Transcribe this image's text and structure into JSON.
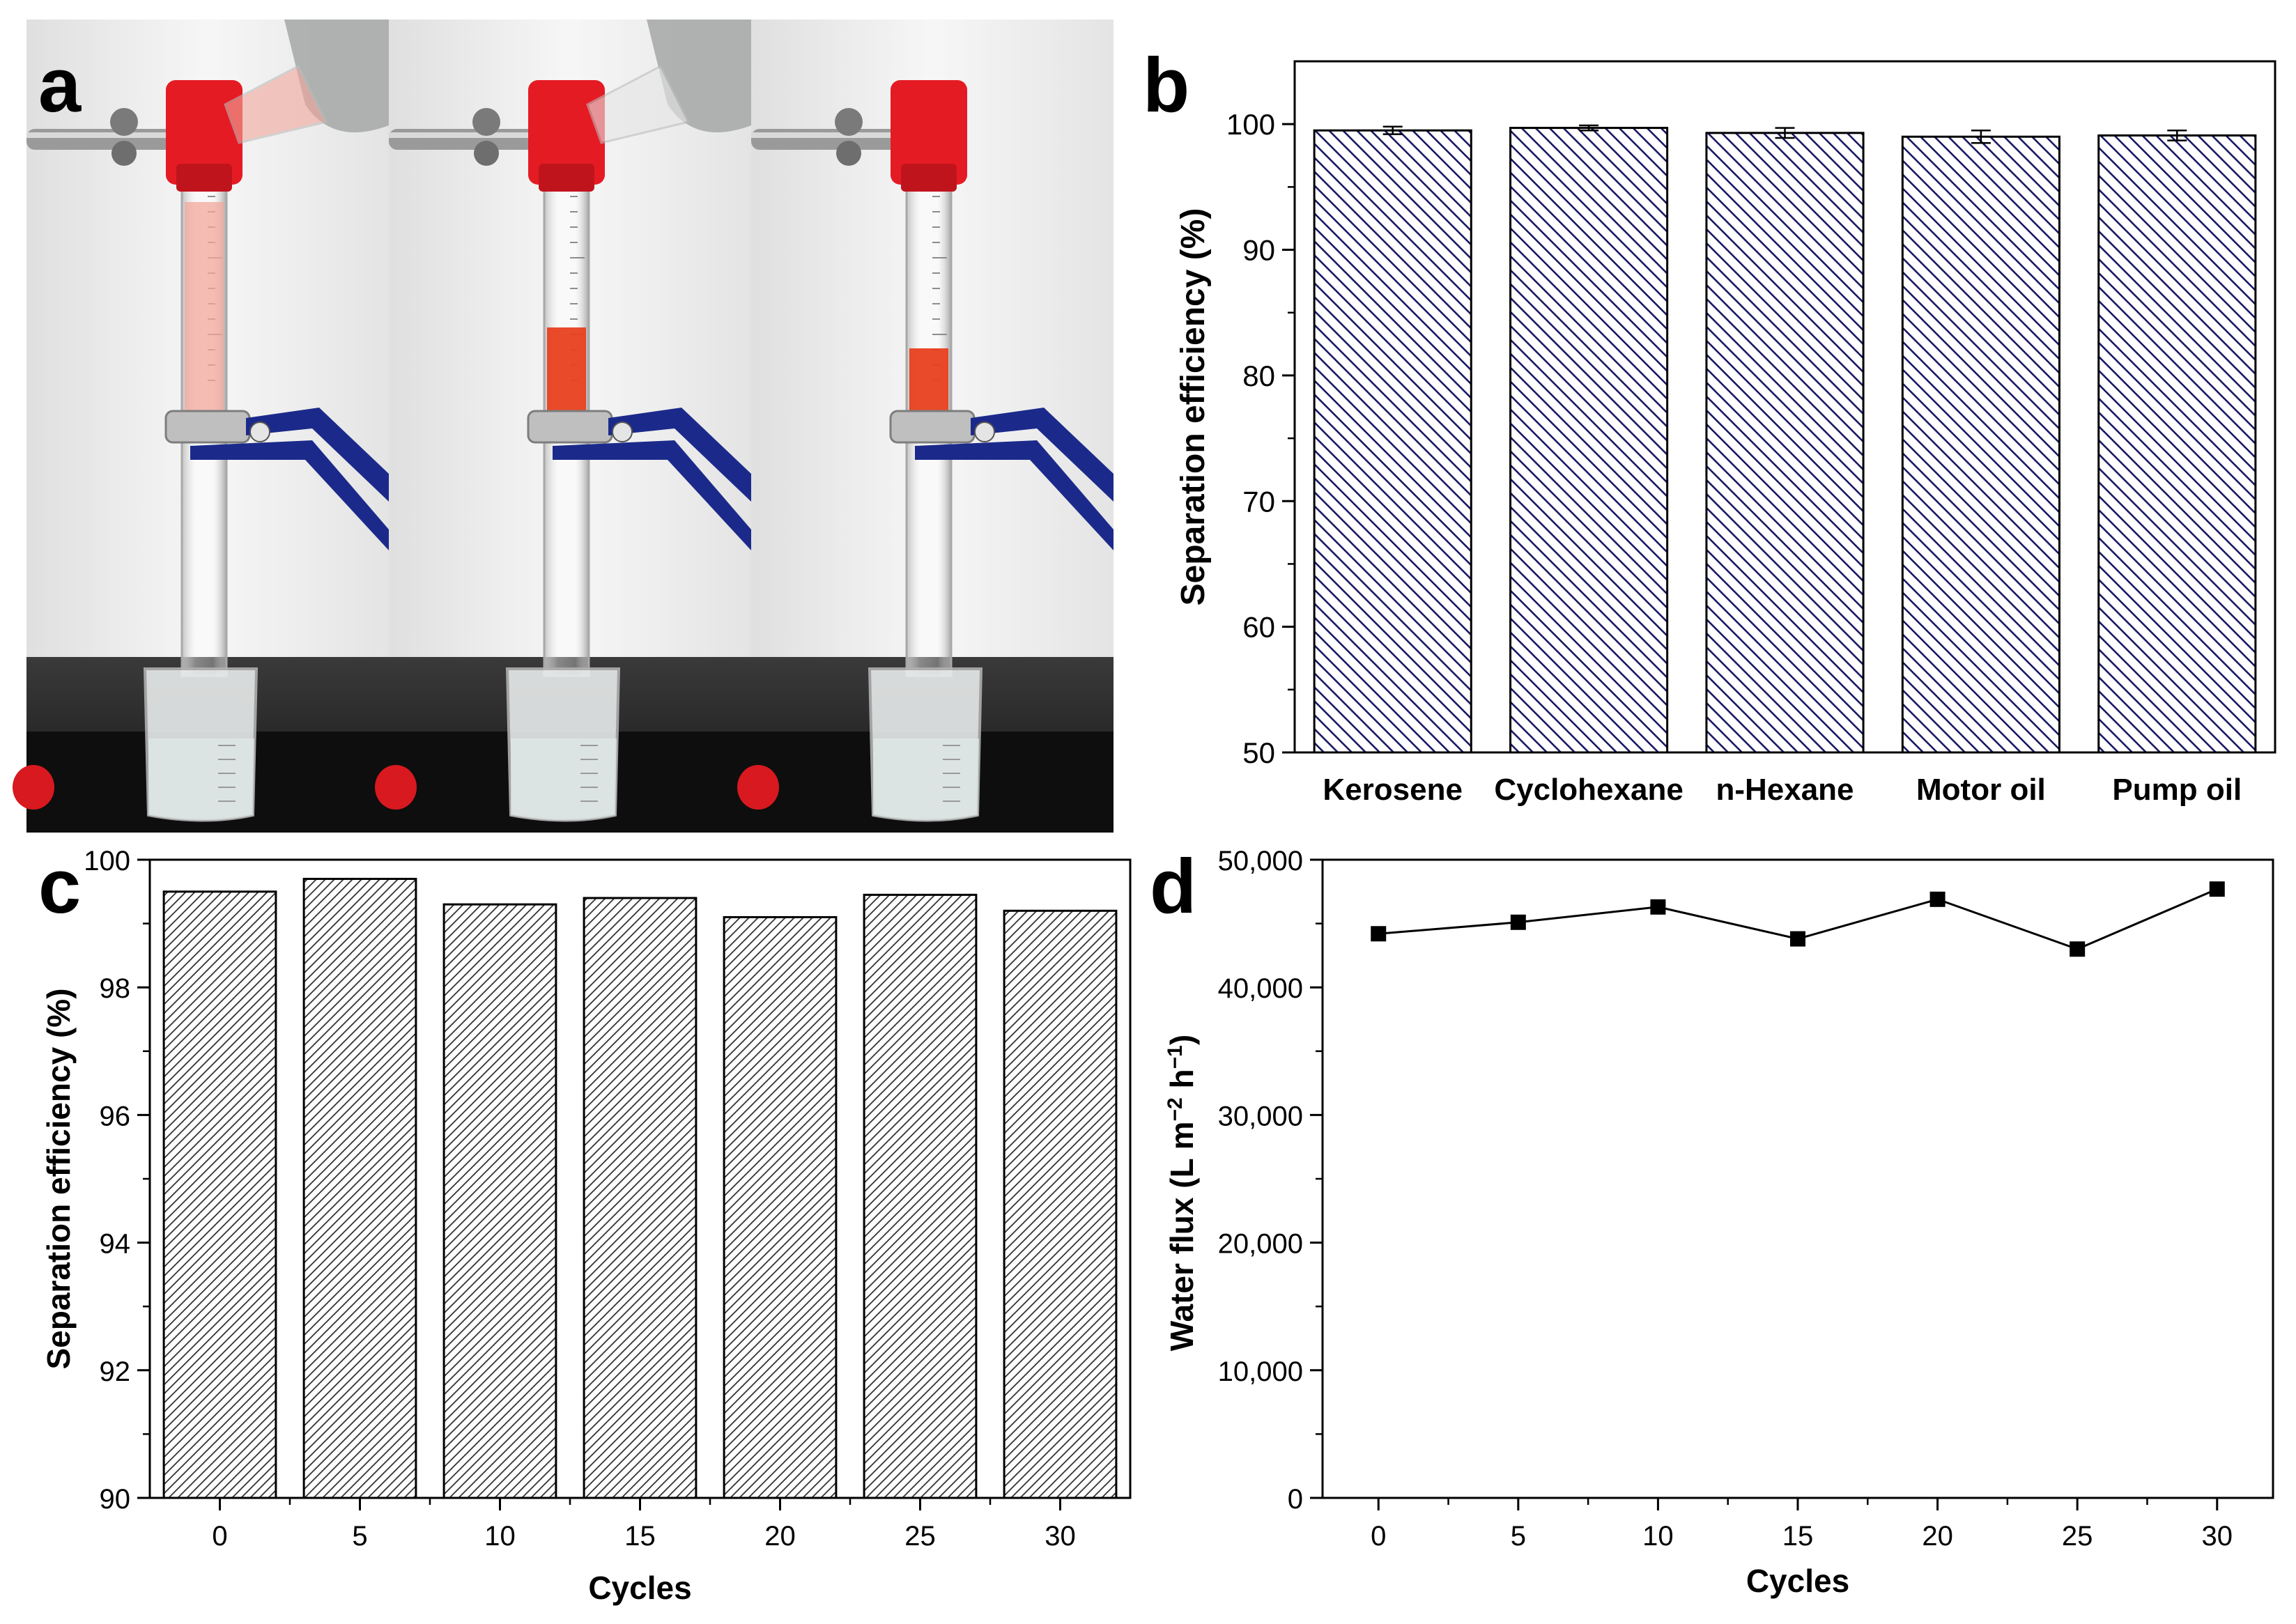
{
  "panels": {
    "a": {
      "letter": "a"
    },
    "b": {
      "letter": "b"
    },
    "c": {
      "letter": "c"
    },
    "d": {
      "letter": "d"
    }
  },
  "colors": {
    "red_oil": "#e8401f",
    "pink_oil": "#f1a79b",
    "clamp_red": "#e51b24",
    "clamp_blue": "#1b2a8a",
    "bench": "#1c1c1c",
    "hatch_b": "#1a1a66",
    "hatch_c": "#333333"
  },
  "chart_data": [
    {
      "id": "b",
      "type": "bar",
      "categories": [
        "Kerosene",
        "Cyclohexane",
        "n-Hexane",
        "Motor oil",
        "Pump oil"
      ],
      "values": [
        99.5,
        99.7,
        99.3,
        99.0,
        99.1
      ],
      "errors": [
        0.3,
        0.2,
        0.4,
        0.5,
        0.4
      ],
      "ylabel": "Separation efficiency (%)",
      "xlabel": "",
      "ylim": [
        50,
        105
      ],
      "yticks": [
        50,
        60,
        70,
        80,
        90,
        100
      ],
      "ytick_labels": [
        "50",
        "60",
        "70",
        "80",
        "90",
        "100"
      ],
      "hatch": "backslash",
      "grid": false
    },
    {
      "id": "c",
      "type": "bar",
      "categories": [
        "0",
        "5",
        "10",
        "15",
        "20",
        "25",
        "30"
      ],
      "values": [
        99.5,
        99.7,
        99.3,
        99.4,
        99.1,
        99.45,
        99.2
      ],
      "xlabel": "Cycles",
      "ylabel": "Separation efficiency (%)",
      "ylim": [
        90,
        100
      ],
      "yticks": [
        90,
        92,
        94,
        96,
        98,
        100
      ],
      "ytick_labels": [
        "90",
        "92",
        "94",
        "96",
        "98",
        "100"
      ],
      "hatch": "slash",
      "grid": false
    },
    {
      "id": "d",
      "type": "line",
      "x": [
        0,
        5,
        10,
        15,
        20,
        25,
        30
      ],
      "xtick_labels": [
        "0",
        "5",
        "10",
        "15",
        "20",
        "25",
        "30"
      ],
      "y": [
        44200,
        45100,
        46300,
        43800,
        46900,
        43000,
        47700
      ],
      "xlabel": "Cycles",
      "ylabel_main": "Water flux (L m",
      "ylabel_sup1": "−2",
      "ylabel_mid": " h",
      "ylabel_sup2": "−1",
      "ylabel_end": ")",
      "xlim": [
        -2,
        32
      ],
      "ylim": [
        0,
        50000
      ],
      "yticks": [
        0,
        10000,
        20000,
        30000,
        40000,
        50000
      ],
      "ytick_labels": [
        "0",
        "10,000",
        "20,000",
        "30,000",
        "40,000",
        "50,000"
      ],
      "marker": "square",
      "grid": false
    }
  ]
}
